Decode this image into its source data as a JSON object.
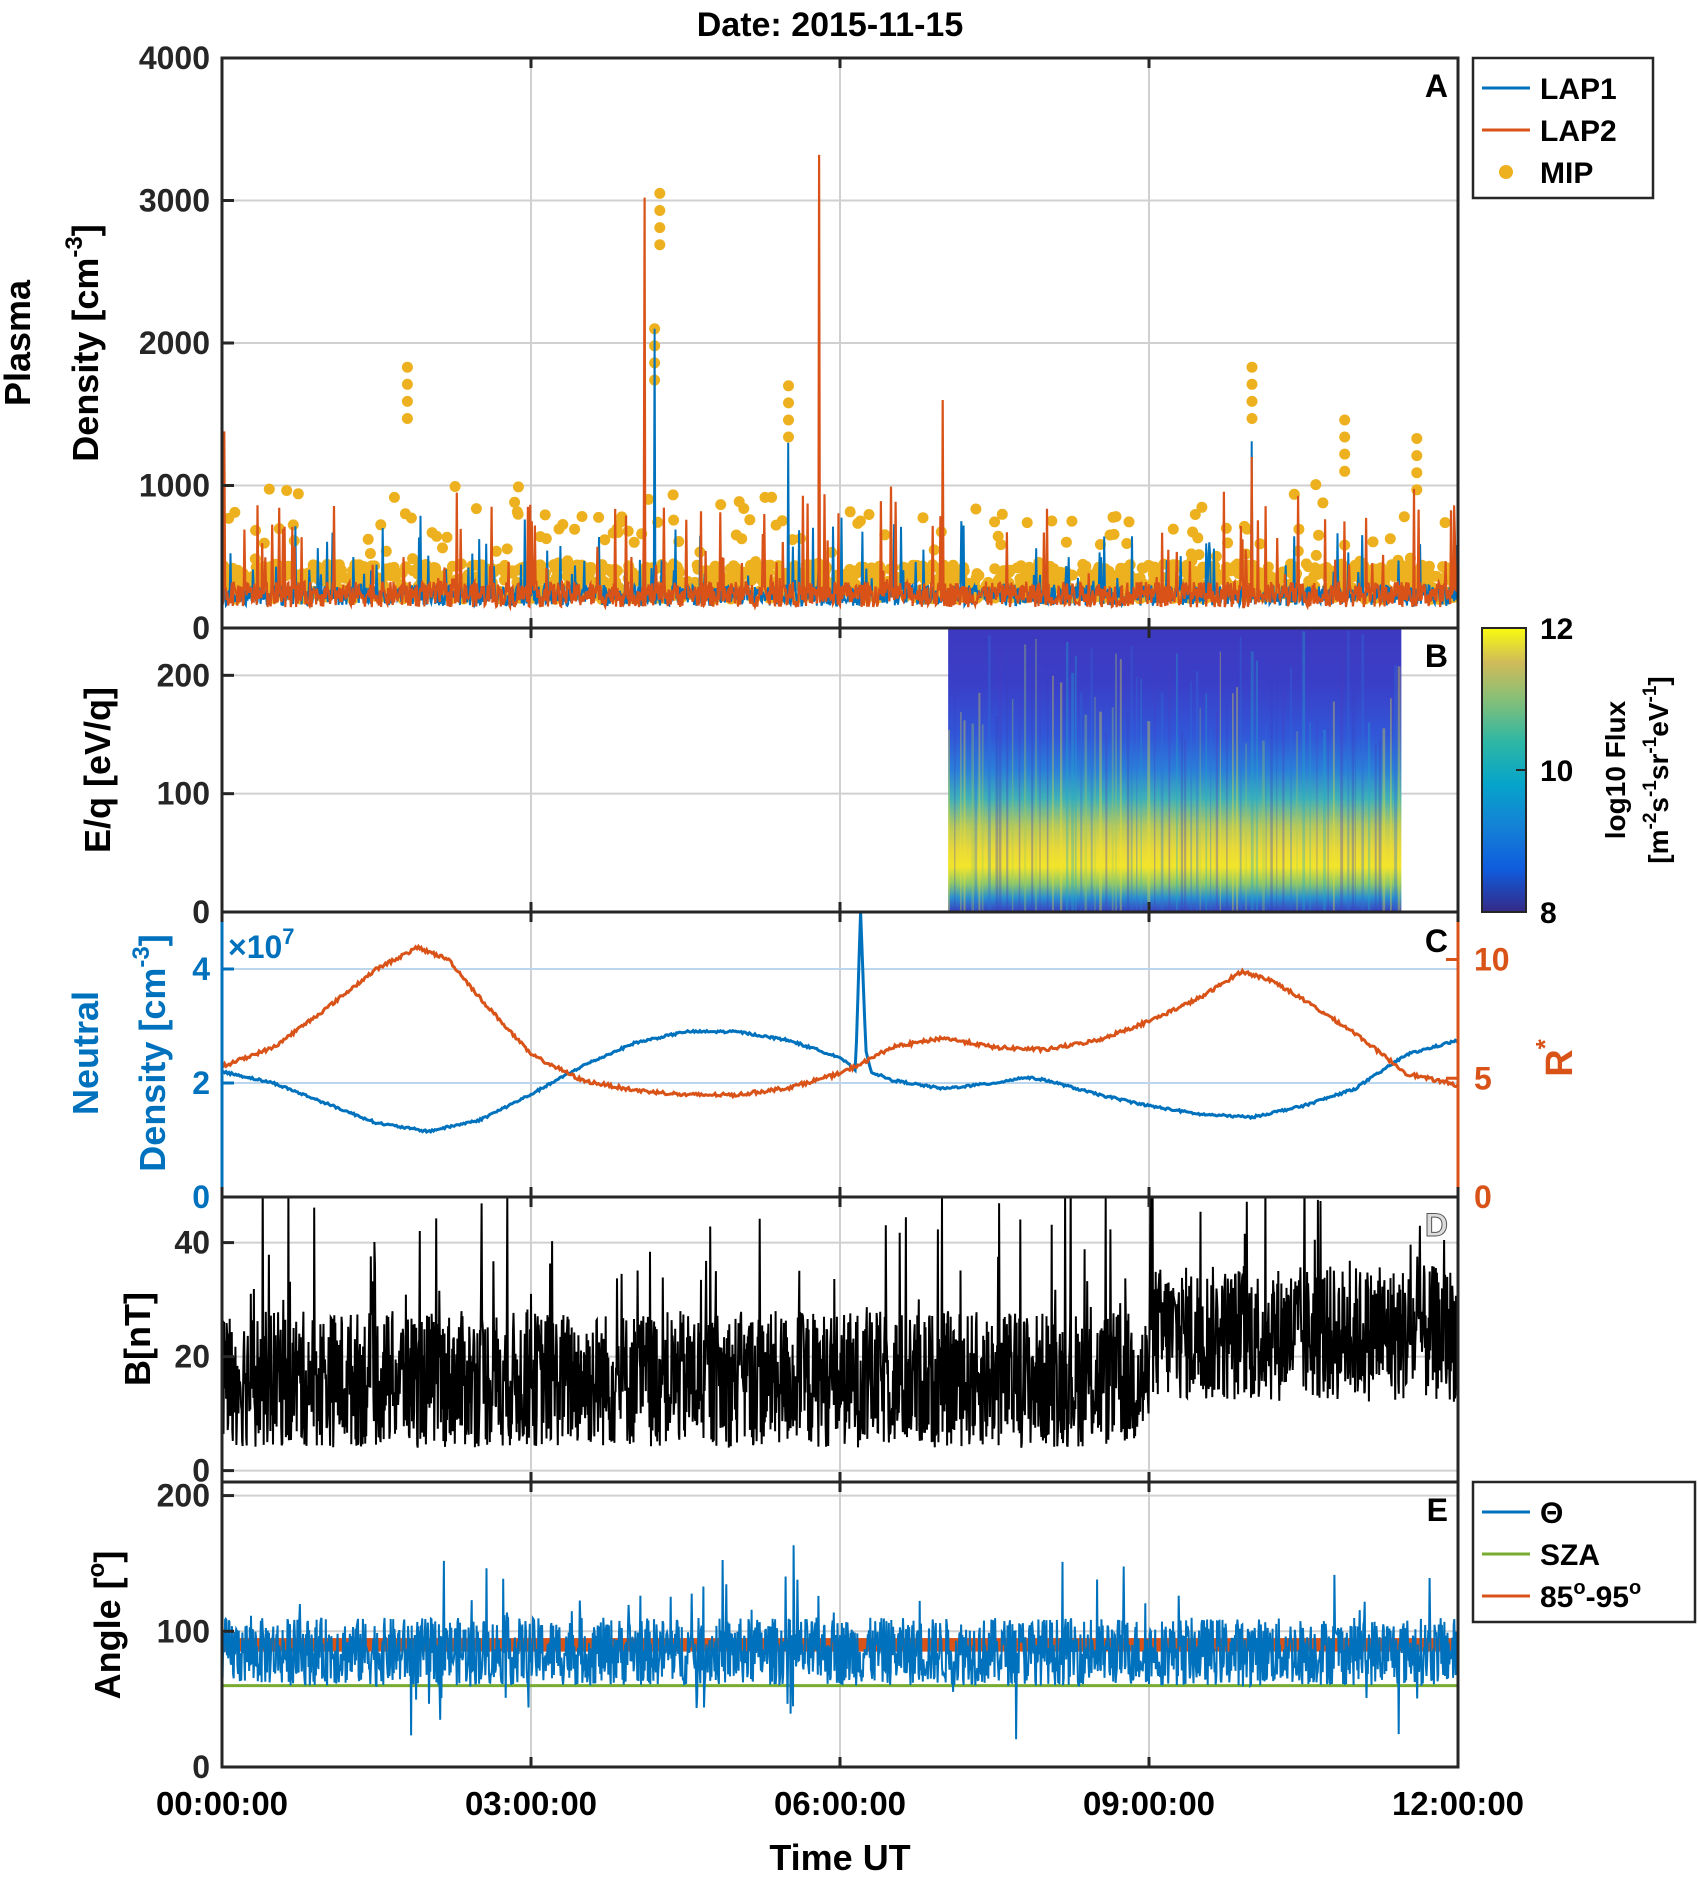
{
  "title": "Date: 2015-11-15",
  "xaxis": {
    "label": "Time UT",
    "ticks": [
      "00:00:00",
      "03:00:00",
      "06:00:00",
      "09:00:00",
      "12:00:00"
    ],
    "range_hours": [
      0,
      12
    ]
  },
  "colors": {
    "lap1": "#0072BD",
    "lap2": "#D95319",
    "mip": "#EDB120",
    "r_star": "#D95319",
    "neutral": "#0072BD",
    "theta": "#0072BD",
    "sza": "#77AC30",
    "band": "#D95319",
    "b": "#000000"
  },
  "chart_data": [
    {
      "id": "A",
      "type": "line",
      "panel_letter": "A",
      "ylabel_line1": "Plasma",
      "ylabel_line2_main": "Density [cm",
      "ylabel_line2_sup": "-3",
      "ylabel_line2_end": "]",
      "ylim": [
        0,
        4000
      ],
      "yticks": [
        "0",
        "1000",
        "2000",
        "3000",
        "4000"
      ],
      "legend": [
        "LAP1",
        "LAP2",
        "MIP"
      ],
      "baseline_density": 200,
      "series": [
        {
          "name": "LAP1",
          "style": "line"
        },
        {
          "name": "LAP2",
          "style": "line"
        },
        {
          "name": "MIP",
          "style": "dots"
        }
      ],
      "peaks_lap2": [
        [
          0.02,
          1380
        ],
        [
          4.1,
          3020
        ],
        [
          5.8,
          3320
        ],
        [
          7.0,
          1600
        ],
        [
          10.0,
          1200
        ]
      ],
      "peaks_lap1": [
        [
          4.2,
          2100
        ],
        [
          5.5,
          1300
        ],
        [
          10.0,
          1310
        ]
      ],
      "peaks_mip": [
        [
          1.8,
          1830
        ],
        [
          4.25,
          3050
        ],
        [
          4.2,
          2100
        ],
        [
          5.5,
          1700
        ],
        [
          10.0,
          1830
        ],
        [
          10.9,
          1460
        ],
        [
          11.6,
          1330
        ]
      ]
    },
    {
      "id": "B",
      "type": "heatmap",
      "panel_letter": "B",
      "ylabel": "E/q [eV/q]",
      "ylim": [
        0,
        240
      ],
      "yticks": [
        "0",
        "100",
        "200"
      ],
      "data_start_hours": 7.05,
      "data_end_hours": 11.45,
      "colorbar": {
        "ticks": [
          "8",
          "10",
          "12"
        ],
        "range": [
          8,
          12
        ],
        "label_line1": "log10 Flux",
        "label_line2": "[m-2 s-1 sr-1 eV-1]"
      }
    },
    {
      "id": "C",
      "type": "line",
      "panel_letter": "C",
      "ylabel_line1": "Neutral",
      "ylabel_line2_main": "Density [cm",
      "ylabel_line2_sup": "-3",
      "ylabel_line2_end": "]",
      "ylim": [
        0,
        5
      ],
      "yticks": [
        "0",
        "2",
        "4"
      ],
      "multiplier_main": "×10",
      "multiplier_exp": "7",
      "ylabel_right": "R",
      "ylabel_right_sup": "*",
      "ylim_right": [
        0,
        12
      ],
      "yticks_right": [
        "0",
        "5",
        "10"
      ],
      "series": [
        {
          "name": "Neutral Density",
          "axis": "left",
          "x": [
            0,
            0.5,
            1.0,
            1.5,
            2.0,
            2.5,
            3.0,
            3.5,
            4.0,
            4.5,
            5.0,
            5.5,
            6.0,
            6.1,
            6.15,
            6.2,
            6.25,
            6.3,
            6.5,
            7.0,
            7.5,
            7.8,
            8.0,
            8.5,
            9.0,
            9.5,
            10.0,
            10.5,
            11.0,
            11.5,
            12.0
          ],
          "values": [
            2.2,
            2.0,
            1.65,
            1.3,
            1.15,
            1.35,
            1.8,
            2.3,
            2.7,
            2.9,
            2.9,
            2.75,
            2.45,
            2.3,
            2.2,
            5.0,
            2.6,
            2.2,
            2.05,
            1.9,
            2.0,
            2.1,
            2.05,
            1.8,
            1.6,
            1.45,
            1.4,
            1.6,
            1.9,
            2.5,
            2.75
          ]
        },
        {
          "name": "R*",
          "axis": "right",
          "x": [
            0,
            0.5,
            1.0,
            1.5,
            1.9,
            2.2,
            2.5,
            3.0,
            3.5,
            4.0,
            4.5,
            5.0,
            5.5,
            6.0,
            6.2,
            6.5,
            7.0,
            7.5,
            8.0,
            8.5,
            9.0,
            9.5,
            9.9,
            10.2,
            10.5,
            11.0,
            11.5,
            12.0
          ],
          "values": [
            5.5,
            6.3,
            7.9,
            9.6,
            10.5,
            10.0,
            8.4,
            6.0,
            4.9,
            4.5,
            4.3,
            4.3,
            4.6,
            5.2,
            5.6,
            6.3,
            6.7,
            6.3,
            6.2,
            6.6,
            7.4,
            8.4,
            9.5,
            9.1,
            8.3,
            6.9,
            5.2,
            4.7
          ]
        }
      ]
    },
    {
      "id": "D",
      "type": "line",
      "panel_letter": "D",
      "ylabel": "B[nT]",
      "ylim": [
        -2,
        48
      ],
      "yticks": [
        "0",
        "20",
        "40"
      ],
      "series": [
        {
          "name": "B",
          "mean_before_9h": 16,
          "mean_after_9h": 24
        }
      ]
    },
    {
      "id": "E",
      "type": "line",
      "panel_letter": "E",
      "ylabel_main": "Angle [",
      "ylabel_sup": "o",
      "ylabel_end": "]",
      "ylim": [
        0,
        210
      ],
      "yticks": [
        "0",
        "100",
        "200"
      ],
      "legend_theta": "Θ",
      "legend_sza": "SZA",
      "legend_band_a": "85",
      "legend_band_sep": "-95",
      "legend_band_sup": "o",
      "series": [
        {
          "name": "Θ",
          "mean": 85
        },
        {
          "name": "SZA",
          "value": 60
        },
        {
          "name": "85°-95°",
          "range": [
            85,
            95
          ]
        }
      ]
    }
  ]
}
